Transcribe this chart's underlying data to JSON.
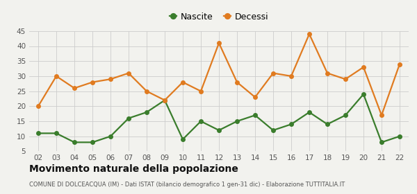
{
  "years": [
    "02",
    "03",
    "04",
    "05",
    "06",
    "07",
    "08",
    "09",
    "10",
    "11",
    "12",
    "13",
    "14",
    "15",
    "16",
    "17",
    "18",
    "19",
    "20",
    "21",
    "22"
  ],
  "nascite": [
    11,
    11,
    8,
    8,
    10,
    16,
    18,
    22,
    9,
    15,
    12,
    15,
    17,
    12,
    14,
    18,
    14,
    17,
    24,
    8,
    10
  ],
  "decessi": [
    20,
    30,
    26,
    28,
    29,
    31,
    25,
    22,
    28,
    25,
    41,
    28,
    23,
    31,
    30,
    44,
    31,
    29,
    33,
    17,
    34
  ],
  "nascite_color": "#3a7d2c",
  "decessi_color": "#e07b20",
  "background_color": "#f2f2ee",
  "grid_color": "#cccccc",
  "title": "Movimento naturale della popolazione",
  "subtitle": "COMUNE DI DOLCEACQUA (IM) - Dati ISTAT (bilancio demografico 1 gen-31 dic) - Elaborazione TUTTITALIA.IT",
  "legend_nascite": "Nascite",
  "legend_decessi": "Decessi",
  "ylim_min": 5,
  "ylim_max": 45,
  "yticks": [
    5,
    10,
    15,
    20,
    25,
    30,
    35,
    40,
    45
  ],
  "marker_size": 4,
  "line_width": 1.6
}
